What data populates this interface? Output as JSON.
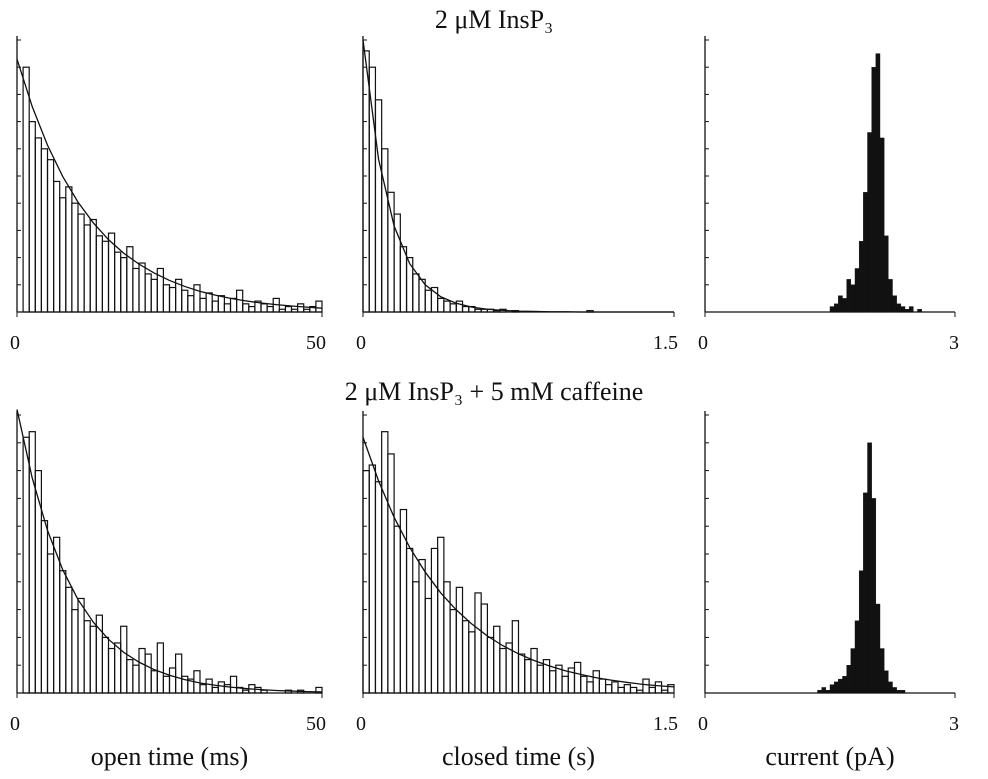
{
  "chart_data": [
    {
      "type": "histogram",
      "title": "2 μM InsP₃",
      "color": "#111111",
      "filled": false,
      "bins": [
        0,
        1,
        2,
        3,
        4,
        5,
        6,
        7,
        8,
        9,
        10,
        11,
        12,
        13,
        14,
        15,
        16,
        17,
        18,
        19,
        20,
        21,
        22,
        23,
        24,
        25,
        26,
        27,
        28,
        29,
        30,
        31,
        32,
        33,
        34,
        35,
        36,
        37,
        38,
        39,
        40,
        41,
        42,
        43,
        44,
        45,
        46,
        47,
        48,
        49,
        50
      ],
      "values": [
        0,
        9.0,
        7.0,
        6.4,
        6.0,
        5.6,
        4.8,
        4.2,
        4.6,
        4.0,
        3.6,
        3.2,
        3.4,
        2.8,
        2.6,
        2.9,
        2.2,
        2.0,
        2.4,
        1.6,
        1.8,
        1.4,
        1.2,
        1.6,
        1.0,
        0.9,
        1.2,
        0.8,
        0.6,
        1.0,
        0.5,
        0.7,
        0.4,
        0.6,
        0.3,
        0.5,
        0.8,
        0.3,
        0.2,
        0.4,
        0.3,
        0.2,
        0.5,
        0.1,
        0.2,
        0.1,
        0.3,
        0.1,
        0.2,
        0.4
      ],
      "fit": {
        "x": [
          0,
          2.5,
          5,
          7.5,
          10,
          12.5,
          15,
          17.5,
          20,
          22.5,
          25,
          27.5,
          30,
          32.5,
          35,
          37.5,
          40,
          42.5,
          45,
          47.5,
          50
        ],
        "values": [
          9.3,
          7.55,
          6.13,
          4.98,
          4.04,
          3.28,
          2.66,
          2.16,
          1.76,
          1.43,
          1.16,
          0.94,
          0.76,
          0.62,
          0.5,
          0.41,
          0.33,
          0.27,
          0.22,
          0.18,
          0.14
        ]
      },
      "xlim": [
        0,
        50
      ],
      "xticks": [
        0,
        50
      ],
      "ylim": [
        0,
        10
      ],
      "yticks": [
        0,
        1,
        2,
        3,
        4,
        5,
        6,
        7,
        8,
        9,
        10
      ]
    },
    {
      "type": "histogram",
      "color": "#111111",
      "filled": false,
      "bins": [
        0,
        0.03,
        0.06,
        0.09,
        0.12,
        0.15,
        0.18,
        0.21,
        0.24,
        0.27,
        0.3,
        0.33,
        0.36,
        0.39,
        0.42,
        0.45,
        0.48,
        0.51,
        0.54,
        0.57,
        0.6,
        0.63,
        0.66,
        0.69,
        0.72,
        0.75,
        0.78,
        0.81,
        0.84,
        0.87,
        0.9,
        0.93,
        0.96,
        0.99,
        1.02,
        1.05,
        1.08,
        1.11,
        1.14,
        1.17,
        1.2,
        1.23,
        1.26,
        1.29,
        1.32,
        1.35,
        1.38,
        1.41,
        1.44,
        1.47,
        1.5
      ],
      "values": [
        9.6,
        9.0,
        7.8,
        6.0,
        4.4,
        3.6,
        2.4,
        2.0,
        1.4,
        1.2,
        0.8,
        0.9,
        0.5,
        0.4,
        0.3,
        0.4,
        0.2,
        0.2,
        0.1,
        0.1,
        0.1,
        0.05,
        0.1,
        0,
        0.05,
        0,
        0,
        0,
        0,
        0,
        0,
        0,
        0,
        0,
        0,
        0,
        0.05,
        0,
        0,
        0,
        0,
        0,
        0,
        0,
        0,
        0,
        0,
        0,
        0,
        0
      ],
      "fit": {
        "x": [
          0,
          0.075,
          0.15,
          0.225,
          0.3,
          0.375,
          0.45,
          0.525,
          0.6,
          0.675,
          0.75,
          0.825,
          0.9,
          0.975,
          1.05,
          1.125,
          1.2,
          1.275,
          1.35,
          1.425,
          1.5
        ],
        "values": [
          10,
          5.62,
          3.16,
          1.78,
          1.0,
          0.56,
          0.32,
          0.18,
          0.1,
          0.06,
          0.03,
          0.02,
          0.01,
          0.01,
          0,
          0,
          0,
          0,
          0,
          0,
          0
        ]
      },
      "xlim": [
        0,
        1.5
      ],
      "xticks": [
        0,
        1.5
      ],
      "ylim": [
        0,
        10
      ],
      "yticks": [
        0,
        1,
        2,
        3,
        4,
        5,
        6,
        7,
        8,
        9,
        10
      ]
    },
    {
      "type": "histogram",
      "color": "#111111",
      "filled": true,
      "bins": [
        1.5,
        1.55,
        1.6,
        1.65,
        1.7,
        1.75,
        1.8,
        1.85,
        1.9,
        1.95,
        2.0,
        2.05,
        2.1,
        2.15,
        2.2,
        2.25,
        2.3,
        2.35,
        2.4,
        2.45,
        2.5,
        2.55,
        2.6
      ],
      "values": [
        0.2,
        0.3,
        0.6,
        0.5,
        1.2,
        1.0,
        1.6,
        2.6,
        4.4,
        6.6,
        9.0,
        9.5,
        6.4,
        2.8,
        1.2,
        0.6,
        0.3,
        0.2,
        0.1,
        0.2,
        0,
        0.1
      ],
      "xlim": [
        0,
        3
      ],
      "xticks": [
        0,
        3
      ],
      "ylim": [
        0,
        10
      ],
      "yticks": [
        0,
        1,
        2,
        3,
        4,
        5,
        6,
        7,
        8,
        9,
        10
      ]
    },
    {
      "type": "histogram",
      "title": "2 μM InsP₃ + 5 mM caffeine",
      "xlabel": "open time (ms)",
      "color": "#111111",
      "filled": false,
      "bins": [
        0,
        1,
        2,
        3,
        4,
        5,
        6,
        7,
        8,
        9,
        10,
        11,
        12,
        13,
        14,
        15,
        16,
        17,
        18,
        19,
        20,
        21,
        22,
        23,
        24,
        25,
        26,
        27,
        28,
        29,
        30,
        31,
        32,
        33,
        34,
        35,
        36,
        37,
        38,
        39,
        40,
        41,
        42,
        43,
        44,
        45,
        46,
        47,
        48,
        49,
        50
      ],
      "values": [
        0,
        9.2,
        9.4,
        8.0,
        6.2,
        5.0,
        5.6,
        4.4,
        3.8,
        3.0,
        3.4,
        2.6,
        2.4,
        2.8,
        2.0,
        1.6,
        1.8,
        2.4,
        1.2,
        1.0,
        1.6,
        1.4,
        0.8,
        1.8,
        0.6,
        0.9,
        1.4,
        0.6,
        0.5,
        0.8,
        0.3,
        0.5,
        0.2,
        0.4,
        0.3,
        0.6,
        0.2,
        0.1,
        0.3,
        0.2,
        0.1,
        0,
        0,
        0,
        0.1,
        0,
        0.1,
        0,
        0,
        0.2
      ],
      "fit": {
        "x": [
          0,
          2.5,
          5,
          7.5,
          10,
          12.5,
          15,
          17.5,
          20,
          22.5,
          25,
          27.5,
          30,
          32.5,
          35,
          37.5,
          40,
          42.5,
          45,
          47.5,
          50
        ],
        "values": [
          10.2,
          7.73,
          5.85,
          4.43,
          3.36,
          2.55,
          1.93,
          1.46,
          1.11,
          0.84,
          0.64,
          0.48,
          0.36,
          0.28,
          0.21,
          0.16,
          0.12,
          0.09,
          0.07,
          0.05,
          0.04
        ]
      },
      "xlim": [
        0,
        50
      ],
      "xticks": [
        0,
        50
      ],
      "ylim": [
        0,
        10
      ],
      "yticks": [
        0,
        1,
        2,
        3,
        4,
        5,
        6,
        7,
        8,
        9,
        10
      ]
    },
    {
      "type": "histogram",
      "xlabel": "closed time (s)",
      "color": "#111111",
      "filled": false,
      "bins": [
        0,
        0.03,
        0.06,
        0.09,
        0.12,
        0.15,
        0.18,
        0.21,
        0.24,
        0.27,
        0.3,
        0.33,
        0.36,
        0.39,
        0.42,
        0.45,
        0.48,
        0.51,
        0.54,
        0.57,
        0.6,
        0.63,
        0.66,
        0.69,
        0.72,
        0.75,
        0.78,
        0.81,
        0.84,
        0.87,
        0.9,
        0.93,
        0.96,
        0.99,
        1.02,
        1.05,
        1.08,
        1.11,
        1.14,
        1.17,
        1.2,
        1.23,
        1.26,
        1.29,
        1.32,
        1.35,
        1.38,
        1.41,
        1.44,
        1.47,
        1.5
      ],
      "values": [
        8.0,
        8.2,
        7.6,
        9.4,
        8.6,
        6.0,
        6.6,
        5.2,
        4.0,
        4.8,
        3.4,
        5.2,
        5.6,
        4.0,
        3.0,
        3.8,
        2.6,
        2.2,
        3.6,
        3.2,
        2.0,
        2.4,
        1.6,
        1.8,
        2.6,
        1.4,
        1.2,
        1.6,
        1.0,
        1.2,
        0.8,
        1.0,
        0.6,
        0.9,
        1.1,
        0.6,
        0.4,
        0.8,
        0.5,
        0.3,
        0.4,
        0.2,
        0.3,
        0.2,
        0.1,
        0.5,
        0.2,
        0.4,
        0.1,
        0.3
      ],
      "fit": {
        "x": [
          0,
          0.075,
          0.15,
          0.225,
          0.3,
          0.375,
          0.45,
          0.525,
          0.6,
          0.675,
          0.75,
          0.825,
          0.9,
          0.975,
          1.05,
          1.125,
          1.2,
          1.275,
          1.35,
          1.425,
          1.5
        ],
        "values": [
          9.2,
          7.63,
          6.32,
          5.24,
          4.35,
          3.6,
          2.99,
          2.48,
          2.05,
          1.7,
          1.41,
          1.17,
          0.97,
          0.8,
          0.67,
          0.55,
          0.46,
          0.38,
          0.31,
          0.26,
          0.22
        ]
      },
      "xlim": [
        0,
        1.5
      ],
      "xticks": [
        0,
        1.5
      ],
      "ylim": [
        0,
        10
      ],
      "yticks": [
        0,
        1,
        2,
        3,
        4,
        5,
        6,
        7,
        8,
        9,
        10
      ]
    },
    {
      "type": "histogram",
      "xlabel": "current (pA)",
      "color": "#111111",
      "filled": true,
      "bins": [
        1.35,
        1.4,
        1.45,
        1.5,
        1.55,
        1.6,
        1.65,
        1.7,
        1.75,
        1.8,
        1.85,
        1.9,
        1.95,
        2.0,
        2.05,
        2.1,
        2.15,
        2.2,
        2.25,
        2.3,
        2.35,
        2.4,
        2.45
      ],
      "values": [
        0.1,
        0.2,
        0.1,
        0.3,
        0.4,
        0.5,
        0.6,
        1.0,
        1.6,
        2.6,
        4.4,
        7.2,
        9.0,
        7.0,
        3.2,
        1.6,
        0.8,
        0.4,
        0.2,
        0.1,
        0.1,
        0
      ],
      "xlim": [
        0,
        3
      ],
      "xticks": [
        0,
        3
      ],
      "ylim": [
        0,
        10
      ],
      "yticks": [
        0,
        1,
        2,
        3,
        4,
        5,
        6,
        7,
        8,
        9,
        10
      ]
    }
  ]
}
